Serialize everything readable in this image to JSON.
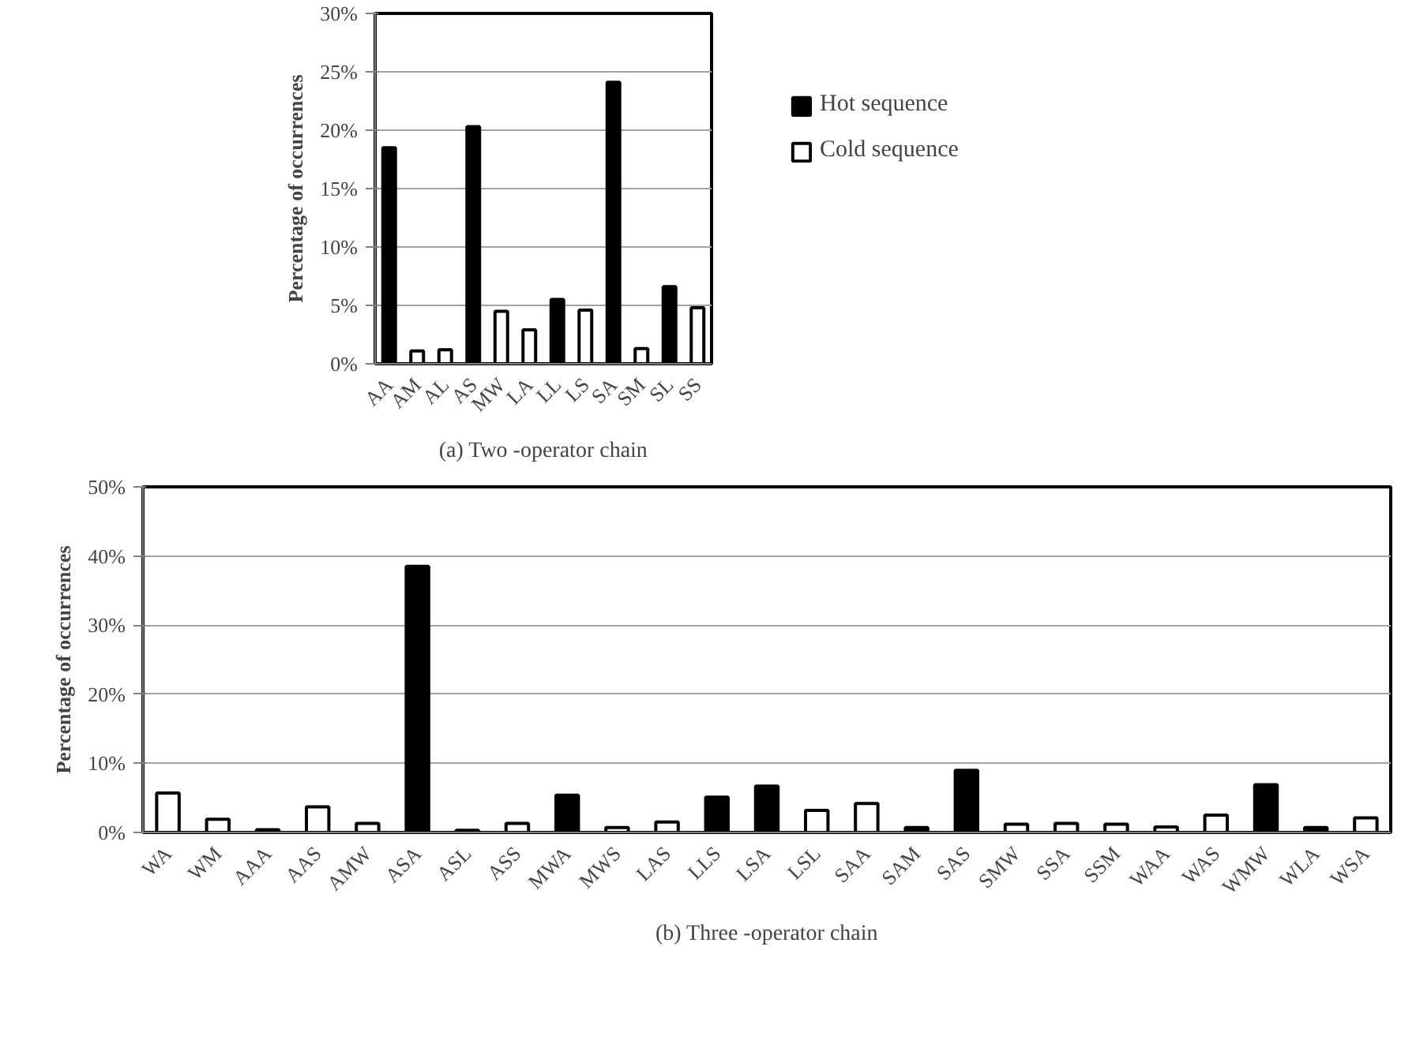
{
  "chart_data": [
    {
      "type": "bar",
      "title": "(a) Two -operator chain",
      "ylabel": "Percentage of occurrences",
      "categories": [
        "AA",
        "AM",
        "AL",
        "AS",
        "MW",
        "LA",
        "LL",
        "LS",
        "SA",
        "SM",
        "SL",
        "SS"
      ],
      "ylim": [
        0,
        30
      ],
      "yticks": [
        {
          "value": 0,
          "label": "0%"
        },
        {
          "value": 5,
          "label": "5%"
        },
        {
          "value": 10,
          "label": "10%"
        },
        {
          "value": 15,
          "label": "15%"
        },
        {
          "value": 20,
          "label": "20%"
        },
        {
          "value": 25,
          "label": "25%"
        },
        {
          "value": 30,
          "label": "30%"
        }
      ],
      "grid": "y",
      "legend": "right",
      "series": [
        {
          "name": "Hot sequence",
          "color": "#000000",
          "values": [
            18.5,
            null,
            null,
            20.3,
            null,
            null,
            5.5,
            null,
            24.1,
            null,
            6.6,
            null
          ]
        },
        {
          "name": "Cold sequence",
          "color": "#ffffff",
          "values": [
            null,
            1.1,
            1.2,
            null,
            4.5,
            2.9,
            null,
            4.6,
            null,
            1.3,
            null,
            4.8
          ]
        }
      ]
    },
    {
      "type": "bar",
      "title": "(b) Three -operator chain",
      "ylabel": "Percentage of occurrences",
      "categories": [
        "WA",
        "WM",
        "AAA",
        "AAS",
        "AMW",
        "ASA",
        "ASL",
        "ASS",
        "MWA",
        "MWS",
        "LAS",
        "LLS",
        "LSA",
        "LSL",
        "SAA",
        "SAM",
        "SAS",
        "SMW",
        "SSA",
        "SSM",
        "WAA",
        "WAS",
        "WMW",
        "WLA",
        "WSA"
      ],
      "ylim": [
        0,
        50
      ],
      "yticks": [
        {
          "value": 0,
          "label": "0%"
        },
        {
          "value": 10,
          "label": "10%"
        },
        {
          "value": 20,
          "label": "20%"
        },
        {
          "value": 30,
          "label": "30%"
        },
        {
          "value": 40,
          "label": "40%"
        },
        {
          "value": 50,
          "label": "50%"
        }
      ],
      "grid": "y",
      "series": [
        {
          "color": "#000000",
          "values": [
            null,
            null,
            0.4,
            null,
            null,
            38.5,
            0.3,
            null,
            5.4,
            null,
            null,
            5.1,
            6.7,
            null,
            null,
            0.7,
            9.0,
            null,
            null,
            null,
            null,
            null,
            6.9,
            0.7,
            null
          ]
        },
        {
          "color": "#ffffff",
          "values": [
            5.7,
            1.9,
            null,
            3.7,
            1.3,
            null,
            null,
            1.3,
            null,
            0.7,
            1.5,
            null,
            null,
            3.2,
            4.2,
            null,
            null,
            1.2,
            1.3,
            1.2,
            0.8,
            2.5,
            null,
            null,
            2.1
          ]
        }
      ]
    }
  ]
}
